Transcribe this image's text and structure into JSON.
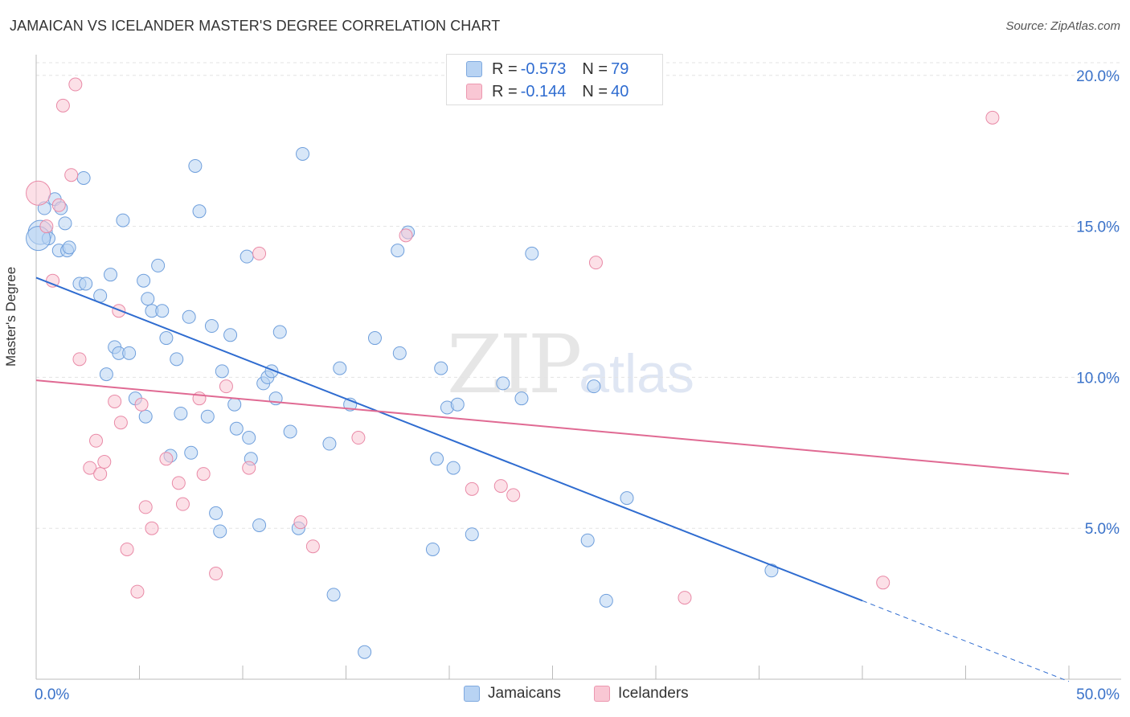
{
  "title": "JAMAICAN VS ICELANDER MASTER'S DEGREE CORRELATION CHART",
  "source": "Source: ZipAtlas.com",
  "watermark": {
    "zip": "ZIP",
    "atlas": "atlas"
  },
  "legend": {
    "rows": [
      {
        "r_label": "R = ",
        "r_value": "-0.573",
        "n_label": "N = ",
        "n_value": "79"
      },
      {
        "r_label": "R = ",
        "r_value": "-0.144",
        "n_label": "N = ",
        "n_value": "40"
      }
    ]
  },
  "bottom_legend": [
    "Jamaicans",
    "Icelanders"
  ],
  "colors": {
    "blue_fill": "#b8d3f3",
    "blue_stroke": "#6f9fdc",
    "blue_line": "#2f6cd0",
    "pink_fill": "#f9c7d4",
    "pink_stroke": "#e98aa7",
    "pink_line": "#e06a93",
    "tick_label": "#3a72c9",
    "grid": "#e3e3e3"
  },
  "chart_data": {
    "type": "scatter",
    "title": "JAMAICAN VS ICELANDER MASTER'S DEGREE CORRELATION CHART",
    "xlabel": "",
    "ylabel": "Master's Degree",
    "xlim": [
      0,
      50
    ],
    "ylim": [
      0,
      20.5
    ],
    "x_tick_labels": [
      "0.0%",
      "50.0%"
    ],
    "y_ticks": [
      5,
      10,
      15,
      20
    ],
    "y_tick_labels": [
      "5.0%",
      "10.0%",
      "15.0%",
      "20.0%"
    ],
    "grid": true,
    "legend_position": "top-center",
    "series": [
      {
        "name": "Jamaicans",
        "r": -0.573,
        "n": 79,
        "trend": {
          "x0": 0,
          "y0": 13.3,
          "x1": 40,
          "y1": 2.6,
          "dashed_to_x": 50
        },
        "points": [
          [
            0.2,
            14.8
          ],
          [
            0.4,
            15.6
          ],
          [
            0.6,
            14.6
          ],
          [
            0.9,
            15.9
          ],
          [
            1.1,
            14.2
          ],
          [
            1.2,
            15.6
          ],
          [
            1.4,
            15.1
          ],
          [
            1.5,
            14.2
          ],
          [
            1.6,
            14.3
          ],
          [
            2.1,
            13.1
          ],
          [
            2.3,
            16.6
          ],
          [
            2.4,
            13.1
          ],
          [
            3.1,
            12.7
          ],
          [
            3.4,
            10.1
          ],
          [
            3.6,
            13.4
          ],
          [
            3.8,
            11.0
          ],
          [
            4.0,
            10.8
          ],
          [
            4.2,
            15.2
          ],
          [
            4.5,
            10.8
          ],
          [
            4.8,
            9.3
          ],
          [
            5.2,
            13.2
          ],
          [
            5.3,
            8.7
          ],
          [
            5.4,
            12.6
          ],
          [
            5.6,
            12.2
          ],
          [
            5.9,
            13.7
          ],
          [
            6.1,
            12.2
          ],
          [
            6.3,
            11.3
          ],
          [
            6.5,
            7.4
          ],
          [
            6.8,
            10.6
          ],
          [
            7.0,
            8.8
          ],
          [
            7.4,
            12.0
          ],
          [
            7.5,
            7.5
          ],
          [
            7.7,
            17.0
          ],
          [
            7.9,
            15.5
          ],
          [
            8.3,
            8.7
          ],
          [
            8.5,
            11.7
          ],
          [
            8.7,
            5.5
          ],
          [
            8.9,
            4.9
          ],
          [
            9.0,
            10.2
          ],
          [
            9.4,
            11.4
          ],
          [
            9.6,
            9.1
          ],
          [
            9.7,
            8.3
          ],
          [
            10.2,
            14.0
          ],
          [
            10.3,
            8.0
          ],
          [
            10.4,
            7.3
          ],
          [
            10.8,
            5.1
          ],
          [
            11.0,
            9.8
          ],
          [
            11.2,
            10.0
          ],
          [
            11.4,
            10.2
          ],
          [
            11.6,
            9.3
          ],
          [
            11.8,
            11.5
          ],
          [
            12.3,
            8.2
          ],
          [
            12.7,
            5.0
          ],
          [
            12.9,
            17.4
          ],
          [
            14.2,
            7.8
          ],
          [
            14.4,
            2.8
          ],
          [
            14.7,
            10.3
          ],
          [
            15.2,
            9.1
          ],
          [
            15.9,
            0.9
          ],
          [
            16.4,
            11.3
          ],
          [
            17.5,
            14.2
          ],
          [
            17.6,
            10.8
          ],
          [
            18.0,
            14.8
          ],
          [
            19.2,
            4.3
          ],
          [
            19.4,
            7.3
          ],
          [
            19.6,
            10.3
          ],
          [
            19.9,
            9.0
          ],
          [
            20.2,
            7.0
          ],
          [
            20.4,
            9.1
          ],
          [
            21.1,
            4.8
          ],
          [
            22.6,
            9.8
          ],
          [
            23.5,
            9.3
          ],
          [
            24.0,
            14.1
          ],
          [
            26.7,
            4.6
          ],
          [
            27.6,
            2.6
          ],
          [
            27.0,
            9.7
          ],
          [
            28.6,
            6.0
          ],
          [
            35.6,
            3.6
          ],
          [
            0.1,
            14.6
          ]
        ]
      },
      {
        "name": "Icelanders",
        "r": -0.144,
        "n": 40,
        "trend": {
          "x0": 0,
          "y0": 9.9,
          "x1": 50,
          "y1": 6.8
        },
        "points": [
          [
            0.1,
            16.1
          ],
          [
            0.5,
            15.0
          ],
          [
            0.8,
            13.2
          ],
          [
            1.1,
            15.7
          ],
          [
            1.3,
            19.0
          ],
          [
            1.7,
            16.7
          ],
          [
            1.9,
            19.7
          ],
          [
            2.1,
            10.6
          ],
          [
            2.6,
            7.0
          ],
          [
            2.9,
            7.9
          ],
          [
            3.1,
            6.8
          ],
          [
            3.3,
            7.2
          ],
          [
            3.8,
            9.2
          ],
          [
            4.0,
            12.2
          ],
          [
            4.1,
            8.5
          ],
          [
            4.4,
            4.3
          ],
          [
            4.9,
            2.9
          ],
          [
            5.1,
            9.1
          ],
          [
            5.3,
            5.7
          ],
          [
            5.6,
            5.0
          ],
          [
            6.3,
            7.3
          ],
          [
            6.9,
            6.5
          ],
          [
            7.1,
            5.8
          ],
          [
            7.9,
            9.3
          ],
          [
            8.1,
            6.8
          ],
          [
            8.7,
            3.5
          ],
          [
            9.2,
            9.7
          ],
          [
            10.3,
            7.0
          ],
          [
            10.8,
            14.1
          ],
          [
            12.8,
            5.2
          ],
          [
            13.4,
            4.4
          ],
          [
            15.6,
            8.0
          ],
          [
            17.9,
            14.7
          ],
          [
            21.1,
            6.3
          ],
          [
            22.5,
            6.4
          ],
          [
            23.1,
            6.1
          ],
          [
            27.1,
            13.8
          ],
          [
            31.4,
            2.7
          ],
          [
            41.0,
            3.2
          ],
          [
            46.3,
            18.6
          ]
        ]
      }
    ]
  }
}
